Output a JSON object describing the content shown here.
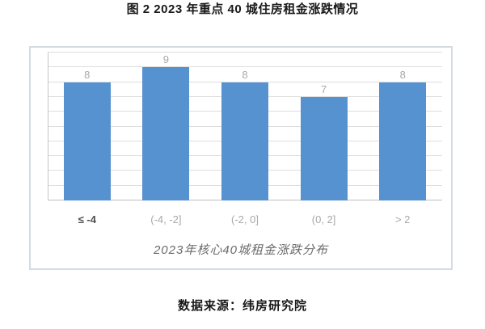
{
  "page": {
    "figure_title": "图 2  2023 年重点 40 城住房租金涨跌情况",
    "source_text": "数据来源：纬房研究院"
  },
  "chart_data": {
    "type": "bar",
    "title": "图 2  2023 年重点 40 城住房租金涨跌情况",
    "categories": [
      "≤ -4",
      "(-4, -2]",
      "(-2, 0]",
      "(0, 2]",
      "> 2"
    ],
    "values": [
      8,
      9,
      8,
      7,
      8
    ],
    "data_labels": [
      "8",
      "9",
      "8",
      "7",
      "8"
    ],
    "xlabel": "2023年核心40城租金涨跌分布",
    "ylabel": "",
    "ylim": [
      0,
      10
    ],
    "grid": "horizontal gridlines every 1 unit, no y-axis tick labels",
    "legend": "none",
    "bar_color": "#5792d0",
    "gridline_color": "#dedede",
    "value_label_color": "#a8a8a8",
    "category_label_color": "#a8a8a8",
    "first_category_label_color": "#4d4d4d",
    "chart_border_color": "#d3dbe4"
  }
}
